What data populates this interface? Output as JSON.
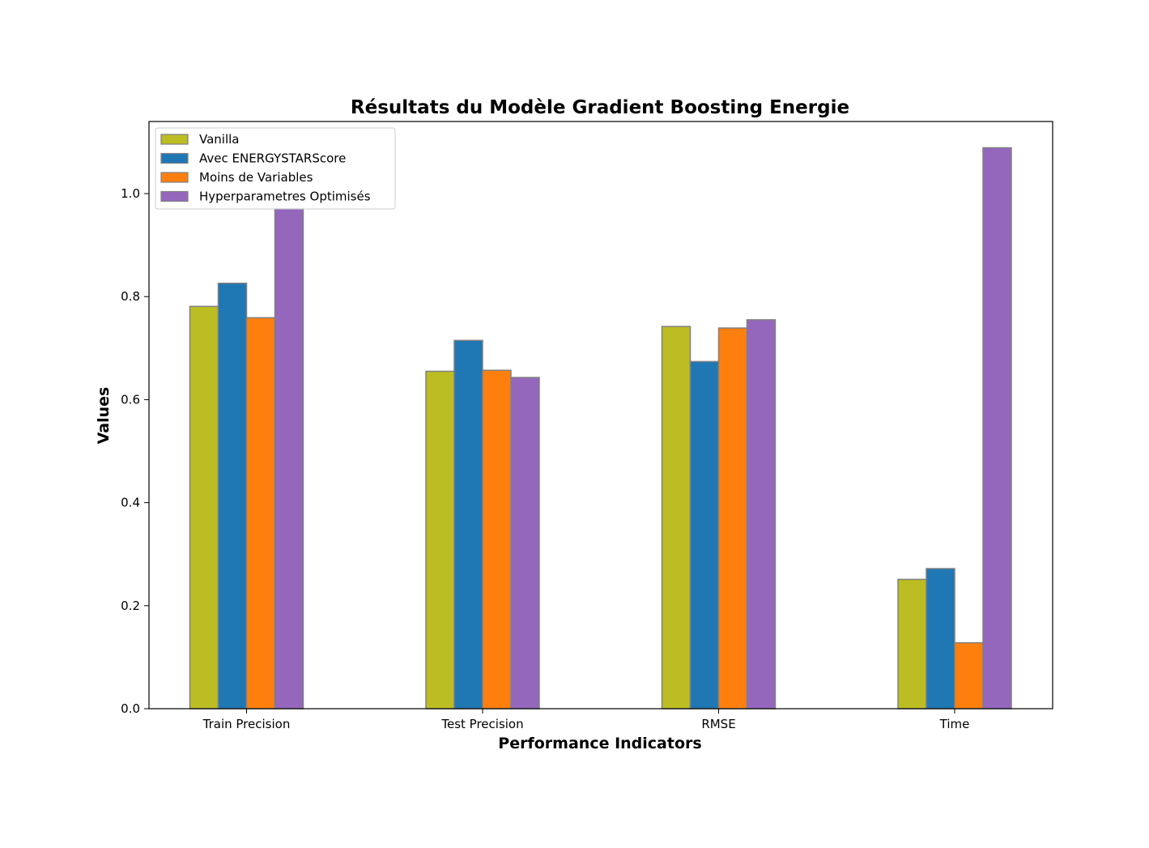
{
  "chart_data": {
    "type": "bar",
    "title": "Résultats du Modèle Gradient Boosting Energie",
    "xlabel": "Performance Indicators",
    "ylabel": "Values",
    "ylim": [
      0,
      1.14
    ],
    "yticks": [
      "0.0",
      "0.2",
      "0.4",
      "0.6",
      "0.8",
      "1.0"
    ],
    "categories": [
      "Train Precision",
      "Test Precision",
      "RMSE",
      "Time"
    ],
    "series": [
      {
        "name": "Vanilla",
        "color": "#bcbd22",
        "values": [
          0.781,
          0.655,
          0.742,
          0.251
        ]
      },
      {
        "name": "Avec ENERGYSTARScore",
        "color": "#1f77b4",
        "values": [
          0.826,
          0.715,
          0.674,
          0.272
        ]
      },
      {
        "name": "Moins de Variables",
        "color": "#ff7f0e",
        "values": [
          0.759,
          0.657,
          0.739,
          0.128
        ]
      },
      {
        "name": "Hyperparametres Optimisés",
        "color": "#9467bd",
        "values": [
          0.971,
          0.643,
          0.755,
          1.089
        ]
      }
    ],
    "legend_position": "top-left",
    "bar_edge_color": "#808080",
    "grid": false
  }
}
